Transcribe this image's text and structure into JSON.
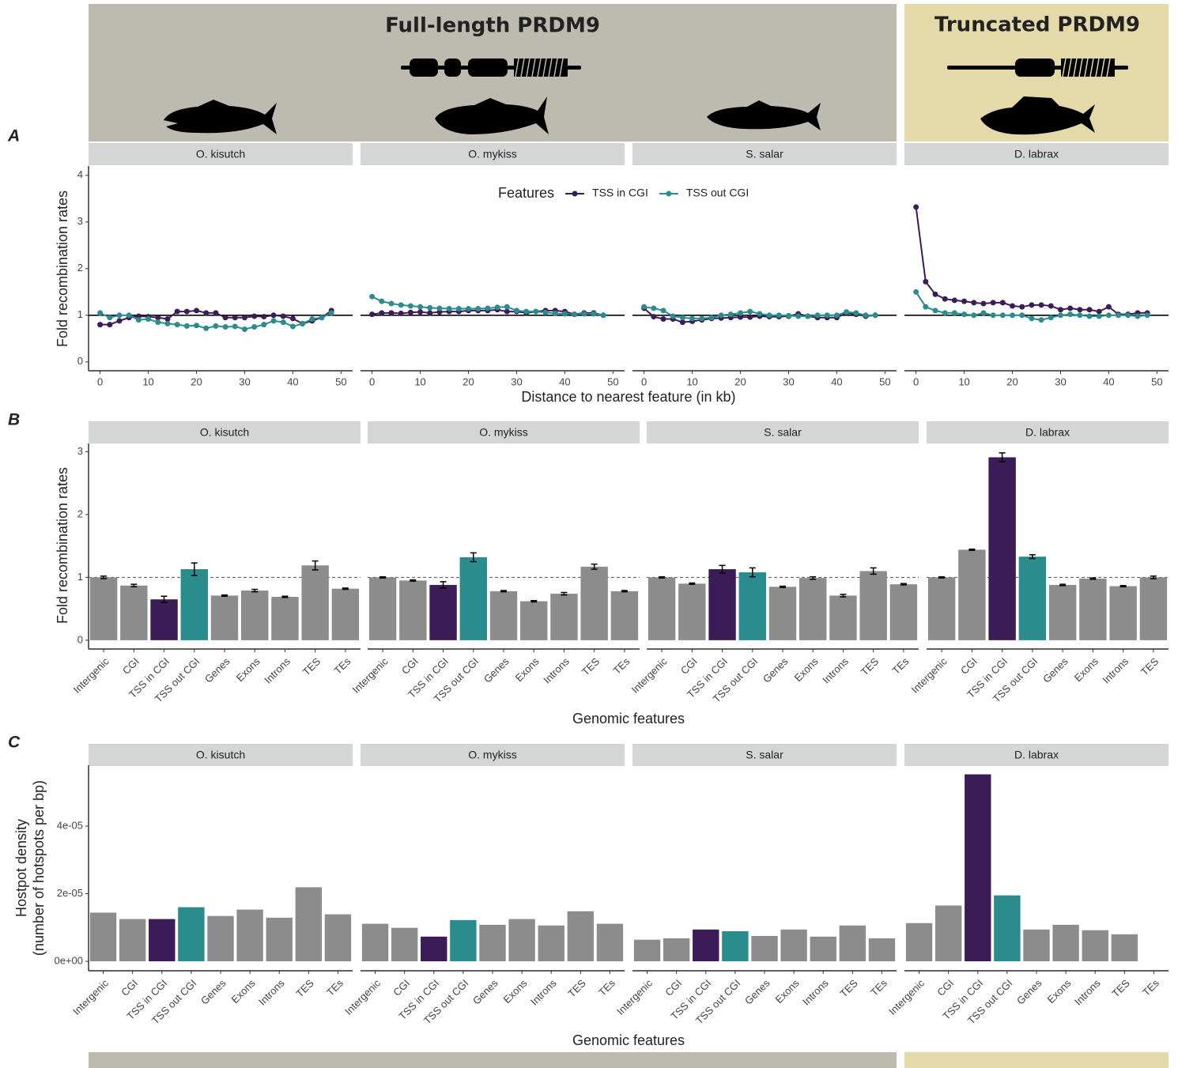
{
  "header": {
    "left_title": "Full-length PRDM9",
    "right_title": "Truncated PRDM9"
  },
  "chart_data": [
    {
      "type": "line",
      "panel": "A",
      "x_label": "Distance to nearest feature (in kb)",
      "y_label": "Fold recombination rates",
      "legend_title": "Features",
      "legend_position": "top",
      "xlim": [
        -2.4,
        52.4
      ],
      "ylim": [
        -0.19,
        4.2
      ],
      "xticks": [
        0,
        10,
        20,
        30,
        40,
        50
      ],
      "yticks": [
        0,
        1,
        2,
        3,
        4
      ],
      "reference_line": 1,
      "facets": [
        "O. kisutch",
        "O. mykiss",
        "S. salar",
        "D. labrax"
      ],
      "x": [
        0,
        2,
        4,
        6,
        8,
        10,
        12,
        14,
        16,
        18,
        20,
        22,
        24,
        26,
        28,
        30,
        32,
        34,
        36,
        38,
        40,
        42,
        44,
        46,
        48
      ],
      "series": [
        {
          "name": "TSS in CGI",
          "color": "#3b1c56",
          "values": [
            [
              0.8,
              0.8,
              0.88,
              0.95,
              0.98,
              0.97,
              0.95,
              0.92,
              1.08,
              1.08,
              1.1,
              1.05,
              1.05,
              0.95,
              0.95,
              0.95,
              0.98,
              0.97,
              1.0,
              0.98,
              0.93,
              0.82,
              0.88,
              0.95,
              1.1
            ],
            [
              1.02,
              1.05,
              1.05,
              1.04,
              1.06,
              1.07,
              1.05,
              1.07,
              1.08,
              1.08,
              1.1,
              1.1,
              1.1,
              1.12,
              1.08,
              1.08,
              1.05,
              1.08,
              1.1,
              1.1,
              1.08,
              1.02,
              1.05,
              1.05,
              1.0
            ],
            [
              1.15,
              0.97,
              0.92,
              0.92,
              0.85,
              0.87,
              0.9,
              0.93,
              0.94,
              0.95,
              0.96,
              0.96,
              0.98,
              0.97,
              0.97,
              0.98,
              1.03,
              0.98,
              0.95,
              0.95,
              0.95,
              1.05,
              1.02,
              0.98,
              1.0
            ],
            [
              3.32,
              1.72,
              1.45,
              1.35,
              1.32,
              1.3,
              1.27,
              1.25,
              1.27,
              1.27,
              1.2,
              1.18,
              1.22,
              1.22,
              1.2,
              1.12,
              1.15,
              1.12,
              1.12,
              1.08,
              1.18,
              1.02,
              1.02,
              1.05,
              1.05
            ]
          ]
        },
        {
          "name": "TSS out CGI",
          "color": "#2a8c8c",
          "values": [
            [
              1.05,
              0.95,
              1.0,
              1.0,
              0.9,
              0.92,
              0.85,
              0.82,
              0.8,
              0.77,
              0.78,
              0.72,
              0.77,
              0.75,
              0.76,
              0.7,
              0.75,
              0.8,
              0.88,
              0.85,
              0.76,
              0.82,
              0.92,
              0.95,
              1.05
            ],
            [
              1.4,
              1.3,
              1.25,
              1.22,
              1.2,
              1.18,
              1.16,
              1.15,
              1.14,
              1.14,
              1.14,
              1.14,
              1.15,
              1.17,
              1.18,
              1.1,
              1.08,
              1.08,
              1.06,
              1.04,
              1.03,
              1.02,
              1.03,
              1.03,
              1.0
            ],
            [
              1.18,
              1.15,
              1.1,
              0.98,
              0.95,
              0.93,
              0.93,
              0.95,
              1.0,
              1.02,
              1.05,
              1.08,
              1.03,
              1.0,
              1.0,
              0.99,
              0.98,
              0.98,
              1.0,
              1.0,
              1.0,
              1.07,
              1.05,
              1.0,
              1.0
            ],
            [
              1.5,
              1.18,
              1.1,
              1.05,
              1.05,
              1.02,
              1.0,
              1.05,
              1.0,
              1.0,
              1.0,
              1.0,
              0.93,
              0.9,
              0.95,
              1.0,
              1.02,
              1.0,
              0.98,
              0.98,
              1.0,
              1.0,
              1.0,
              0.98,
              1.0
            ]
          ]
        }
      ]
    },
    {
      "type": "bar",
      "panel": "B",
      "x_label": "Genomic features",
      "y_label": [
        "Fold recombination rates"
      ],
      "ylim": [
        -0.14,
        3.13
      ],
      "yticks": [
        0,
        1,
        2,
        3
      ],
      "reference_line": 1,
      "reference_line_style": "dashed",
      "facets": [
        "O. kisutch",
        "O. mykiss",
        "S. salar",
        "D. labrax"
      ],
      "categories": [
        [
          "Intergenic",
          "CGI",
          "TSS in CGI",
          "TSS out CGI",
          "Genes",
          "Exons",
          "Introns",
          "TES",
          "TEs"
        ],
        [
          "Intergenic",
          "CGI",
          "TSS in CGI",
          "TSS out CGI",
          "Genes",
          "Exons",
          "Introns",
          "TES",
          "TEs"
        ],
        [
          "Intergenic",
          "CGI",
          "TSS in CGI",
          "TSS out CGI",
          "Genes",
          "Exons",
          "Introns",
          "TES",
          "TEs"
        ],
        [
          "Intergenic",
          "CGI",
          "TSS in CGI",
          "TSS out CGI",
          "Genes",
          "Exons",
          "Introns",
          "TES"
        ]
      ],
      "values": [
        [
          1.0,
          0.87,
          0.65,
          1.13,
          0.71,
          0.79,
          0.69,
          1.19,
          0.82
        ],
        [
          1.0,
          0.95,
          0.88,
          1.32,
          0.78,
          0.62,
          0.74,
          1.17,
          0.78
        ],
        [
          1.0,
          0.9,
          1.13,
          1.08,
          0.85,
          0.99,
          0.71,
          1.1,
          0.89
        ],
        [
          1.0,
          1.44,
          2.91,
          1.33,
          0.88,
          0.98,
          0.86,
          1.0
        ]
      ],
      "errors": [
        [
          0.02,
          0.02,
          0.05,
          0.1,
          0.01,
          0.02,
          0.01,
          0.07,
          0.01
        ],
        [
          0.01,
          0.01,
          0.05,
          0.07,
          0.01,
          0.01,
          0.02,
          0.04,
          0.01
        ],
        [
          0.01,
          0.01,
          0.06,
          0.07,
          0.01,
          0.02,
          0.02,
          0.05,
          0.01
        ],
        [
          0.01,
          0.01,
          0.07,
          0.03,
          0.01,
          0.01,
          0.01,
          0.02
        ]
      ],
      "colors": [
        [
          "#8c8c8d",
          "#8c8c8d",
          "#3b1c56",
          "#2a8c8c",
          "#8c8c8d",
          "#8c8c8d",
          "#8c8c8d",
          "#8c8c8d",
          "#8c8c8d"
        ],
        [
          "#8c8c8d",
          "#8c8c8d",
          "#3b1c56",
          "#2a8c8c",
          "#8c8c8d",
          "#8c8c8d",
          "#8c8c8d",
          "#8c8c8d",
          "#8c8c8d"
        ],
        [
          "#8c8c8d",
          "#8c8c8d",
          "#3b1c56",
          "#2a8c8c",
          "#8c8c8d",
          "#8c8c8d",
          "#8c8c8d",
          "#8c8c8d",
          "#8c8c8d"
        ],
        [
          "#8c8c8d",
          "#8c8c8d",
          "#3b1c56",
          "#2a8c8c",
          "#8c8c8d",
          "#8c8c8d",
          "#8c8c8d",
          "#8c8c8d"
        ]
      ]
    },
    {
      "type": "bar",
      "panel": "C",
      "x_label": "Genomic features",
      "y_label": [
        "Hostpot density",
        "(number of hotspots per bp)"
      ],
      "ylim": [
        -2.8e-06,
        5.8e-05
      ],
      "yticks": [
        {
          "value": 0,
          "label": "0e+00"
        },
        {
          "value": 2e-05,
          "label": "2e-05"
        },
        {
          "value": 4e-05,
          "label": "4e-05"
        }
      ],
      "facets": [
        "O. kisutch",
        "O. mykiss",
        "S. salar",
        "D. labrax"
      ],
      "categories": [
        [
          "Intergenic",
          "CGI",
          "TSS in CGI",
          "TSS out CGI",
          "Genes",
          "Exons",
          "Introns",
          "TES",
          "TEs"
        ],
        [
          "Intergenic",
          "CGI",
          "TSS in CGI",
          "TSS out CGI",
          "Genes",
          "Exons",
          "Introns",
          "TES",
          "TEs"
        ],
        [
          "Intergenic",
          "CGI",
          "TSS in CGI",
          "TSS out CGI",
          "Genes",
          "Exons",
          "Introns",
          "TES",
          "TEs"
        ],
        [
          "Intergenic",
          "CGI",
          "TSS in CGI",
          "TSS out CGI",
          "Genes",
          "Exons",
          "Introns",
          "TES",
          "TEs"
        ]
      ],
      "values": [
        [
          1.44e-05,
          1.25e-05,
          1.25e-05,
          1.6e-05,
          1.34e-05,
          1.53e-05,
          1.29e-05,
          2.19e-05,
          1.39e-05
        ],
        [
          1.11e-05,
          9.9e-06,
          7.3e-06,
          1.22e-05,
          1.08e-05,
          1.25e-05,
          1.06e-05,
          1.48e-05,
          1.11e-05
        ],
        [
          6.4e-06,
          6.8e-06,
          9.4e-06,
          8.9e-06,
          7.5e-06,
          9.4e-06,
          7.3e-06,
          1.06e-05,
          6.8e-06
        ],
        [
          1.13e-05,
          1.65e-05,
          5.53e-05,
          1.95e-05,
          9.4e-06,
          1.08e-05,
          9.2e-06,
          8e-06,
          null
        ]
      ],
      "colors": [
        [
          "#8c8c8d",
          "#8c8c8d",
          "#3b1c56",
          "#2a8c8c",
          "#8c8c8d",
          "#8c8c8d",
          "#8c8c8d",
          "#8c8c8d",
          "#8c8c8d"
        ],
        [
          "#8c8c8d",
          "#8c8c8d",
          "#3b1c56",
          "#2a8c8c",
          "#8c8c8d",
          "#8c8c8d",
          "#8c8c8d",
          "#8c8c8d",
          "#8c8c8d"
        ],
        [
          "#8c8c8d",
          "#8c8c8d",
          "#3b1c56",
          "#2a8c8c",
          "#8c8c8d",
          "#8c8c8d",
          "#8c8c8d",
          "#8c8c8d",
          "#8c8c8d"
        ],
        [
          "#8c8c8d",
          "#8c8c8d",
          "#3b1c56",
          "#2a8c8c",
          "#8c8c8d",
          "#8c8c8d",
          "#8c8c8d",
          "#8c8c8d",
          "#8c8c8d"
        ]
      ]
    }
  ]
}
